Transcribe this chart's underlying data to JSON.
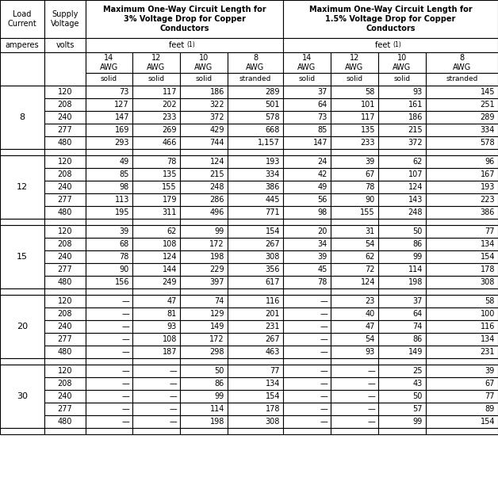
{
  "title_3pct": "Maximum One-Way Circuit Length for\n3% Voltage Drop for Copper\nConductors",
  "title_15pct": "Maximum One-Way Circuit Length for\n1.5% Voltage Drop for Copper\nConductors",
  "col1_header": "Load\nCurrent",
  "col2_header": "Supply\nVoltage",
  "units_label": "feet (1)",
  "awg_labels": [
    "14\nAWG",
    "12\nAWG",
    "10\nAWG",
    "8\nAWG",
    "14\nAWG",
    "12\nAWG",
    "10\nAWG",
    "8\nAWG"
  ],
  "conductor_types": [
    "solid",
    "solid",
    "solid",
    "stranded",
    "solid",
    "solid",
    "solid",
    "stranded"
  ],
  "row_headers_label": "amperes",
  "voltage_label": "volts",
  "groups": [
    {
      "load": "8",
      "rows": [
        {
          "voltage": "120",
          "d3": [
            "73",
            "117",
            "186",
            "289"
          ],
          "d15": [
            "37",
            "58",
            "93",
            "145"
          ]
        },
        {
          "voltage": "208",
          "d3": [
            "127",
            "202",
            "322",
            "501"
          ],
          "d15": [
            "64",
            "101",
            "161",
            "251"
          ]
        },
        {
          "voltage": "240",
          "d3": [
            "147",
            "233",
            "372",
            "578"
          ],
          "d15": [
            "73",
            "117",
            "186",
            "289"
          ]
        },
        {
          "voltage": "277",
          "d3": [
            "169",
            "269",
            "429",
            "668"
          ],
          "d15": [
            "85",
            "135",
            "215",
            "334"
          ]
        },
        {
          "voltage": "480",
          "d3": [
            "293",
            "466",
            "744",
            "1,157"
          ],
          "d15": [
            "147",
            "233",
            "372",
            "578"
          ]
        }
      ]
    },
    {
      "load": "12",
      "rows": [
        {
          "voltage": "120",
          "d3": [
            "49",
            "78",
            "124",
            "193"
          ],
          "d15": [
            "24",
            "39",
            "62",
            "96"
          ]
        },
        {
          "voltage": "208",
          "d3": [
            "85",
            "135",
            "215",
            "334"
          ],
          "d15": [
            "42",
            "67",
            "107",
            "167"
          ]
        },
        {
          "voltage": "240",
          "d3": [
            "98",
            "155",
            "248",
            "386"
          ],
          "d15": [
            "49",
            "78",
            "124",
            "193"
          ]
        },
        {
          "voltage": "277",
          "d3": [
            "113",
            "179",
            "286",
            "445"
          ],
          "d15": [
            "56",
            "90",
            "143",
            "223"
          ]
        },
        {
          "voltage": "480",
          "d3": [
            "195",
            "311",
            "496",
            "771"
          ],
          "d15": [
            "98",
            "155",
            "248",
            "386"
          ]
        }
      ]
    },
    {
      "load": "15",
      "rows": [
        {
          "voltage": "120",
          "d3": [
            "39",
            "62",
            "99",
            "154"
          ],
          "d15": [
            "20",
            "31",
            "50",
            "77"
          ]
        },
        {
          "voltage": "208",
          "d3": [
            "68",
            "108",
            "172",
            "267"
          ],
          "d15": [
            "34",
            "54",
            "86",
            "134"
          ]
        },
        {
          "voltage": "240",
          "d3": [
            "78",
            "124",
            "198",
            "308"
          ],
          "d15": [
            "39",
            "62",
            "99",
            "154"
          ]
        },
        {
          "voltage": "277",
          "d3": [
            "90",
            "144",
            "229",
            "356"
          ],
          "d15": [
            "45",
            "72",
            "114",
            "178"
          ]
        },
        {
          "voltage": "480",
          "d3": [
            "156",
            "249",
            "397",
            "617"
          ],
          "d15": [
            "78",
            "124",
            "198",
            "308"
          ]
        }
      ]
    },
    {
      "load": "20",
      "rows": [
        {
          "voltage": "120",
          "d3": [
            "—",
            "47",
            "74",
            "116"
          ],
          "d15": [
            "—",
            "23",
            "37",
            "58"
          ]
        },
        {
          "voltage": "208",
          "d3": [
            "—",
            "81",
            "129",
            "201"
          ],
          "d15": [
            "—",
            "40",
            "64",
            "100"
          ]
        },
        {
          "voltage": "240",
          "d3": [
            "—",
            "93",
            "149",
            "231"
          ],
          "d15": [
            "—",
            "47",
            "74",
            "116"
          ]
        },
        {
          "voltage": "277",
          "d3": [
            "—",
            "108",
            "172",
            "267"
          ],
          "d15": [
            "—",
            "54",
            "86",
            "134"
          ]
        },
        {
          "voltage": "480",
          "d3": [
            "—",
            "187",
            "298",
            "463"
          ],
          "d15": [
            "—",
            "93",
            "149",
            "231"
          ]
        }
      ]
    },
    {
      "load": "30",
      "rows": [
        {
          "voltage": "120",
          "d3": [
            "—",
            "—",
            "50",
            "77"
          ],
          "d15": [
            "—",
            "—",
            "25",
            "39"
          ]
        },
        {
          "voltage": "208",
          "d3": [
            "—",
            "—",
            "86",
            "134"
          ],
          "d15": [
            "—",
            "—",
            "43",
            "67"
          ]
        },
        {
          "voltage": "240",
          "d3": [
            "—",
            "—",
            "99",
            "154"
          ],
          "d15": [
            "—",
            "—",
            "50",
            "77"
          ]
        },
        {
          "voltage": "277",
          "d3": [
            "—",
            "—",
            "114",
            "178"
          ],
          "d15": [
            "—",
            "—",
            "57",
            "89"
          ]
        },
        {
          "voltage": "480",
          "d3": [
            "—",
            "—",
            "198",
            "308"
          ],
          "d15": [
            "—",
            "—",
            "99",
            "154"
          ]
        }
      ]
    }
  ],
  "bg_color": "#ffffff",
  "line_color": "#000000",
  "text_color": "#000000",
  "header_bg": "#ffffff"
}
